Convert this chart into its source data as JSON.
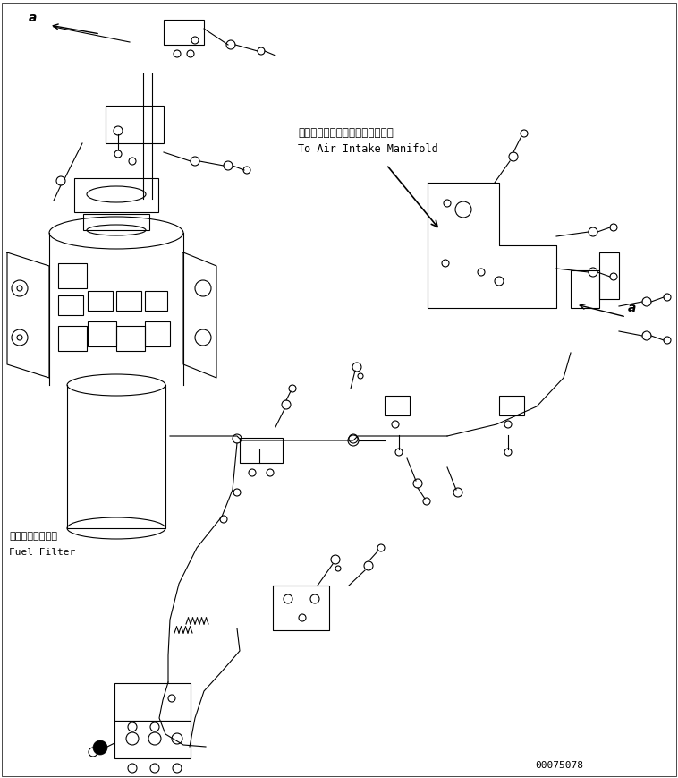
{
  "bg_color": "#ffffff",
  "line_color": "#000000",
  "fig_width": 7.58,
  "fig_height": 8.69,
  "dpi": 100,
  "label_fuel_filter_jp": "フェエルフィルタ",
  "label_fuel_filter_en": "Fuel Filter",
  "label_manifold_jp": "エアーインテークマニホールドヘ",
  "label_manifold_en": "To Air Intake Manifold",
  "label_a1": "a",
  "label_a2": "a",
  "part_number": "00075078"
}
